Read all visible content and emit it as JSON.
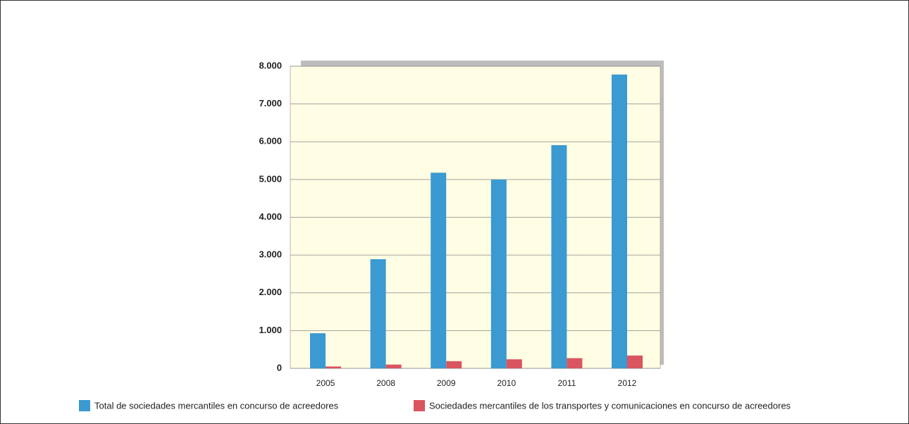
{
  "chart_data": {
    "type": "bar",
    "categories": [
      "2005",
      "2008",
      "2009",
      "2010",
      "2011",
      "2012"
    ],
    "series": [
      {
        "name": "Total de sociedades mercantiles en concurso de acreedores",
        "color": "#3a9ad1",
        "values": [
          930,
          2890,
          5180,
          5000,
          5910,
          7780
        ]
      },
      {
        "name": "Sociedades mercantiles de los transportes y comunicaciones en concurso de acreedores",
        "color": "#d9555f",
        "values": [
          50,
          100,
          190,
          240,
          270,
          340
        ]
      }
    ],
    "ylim": [
      0,
      8000
    ],
    "yticks": [
      0,
      {
        "value": 1000,
        "label": "1.000"
      },
      {
        "value": 2000,
        "label": "2.000"
      },
      {
        "value": 3000,
        "label": "3.000"
      },
      {
        "value": 4000,
        "label": "4.000"
      },
      {
        "value": 5000,
        "label": "5.000"
      },
      {
        "value": 6000,
        "label": "6.000"
      },
      {
        "value": 7000,
        "label": "7.000"
      },
      {
        "value": 8000,
        "label": "8.000"
      }
    ],
    "grid": true
  }
}
